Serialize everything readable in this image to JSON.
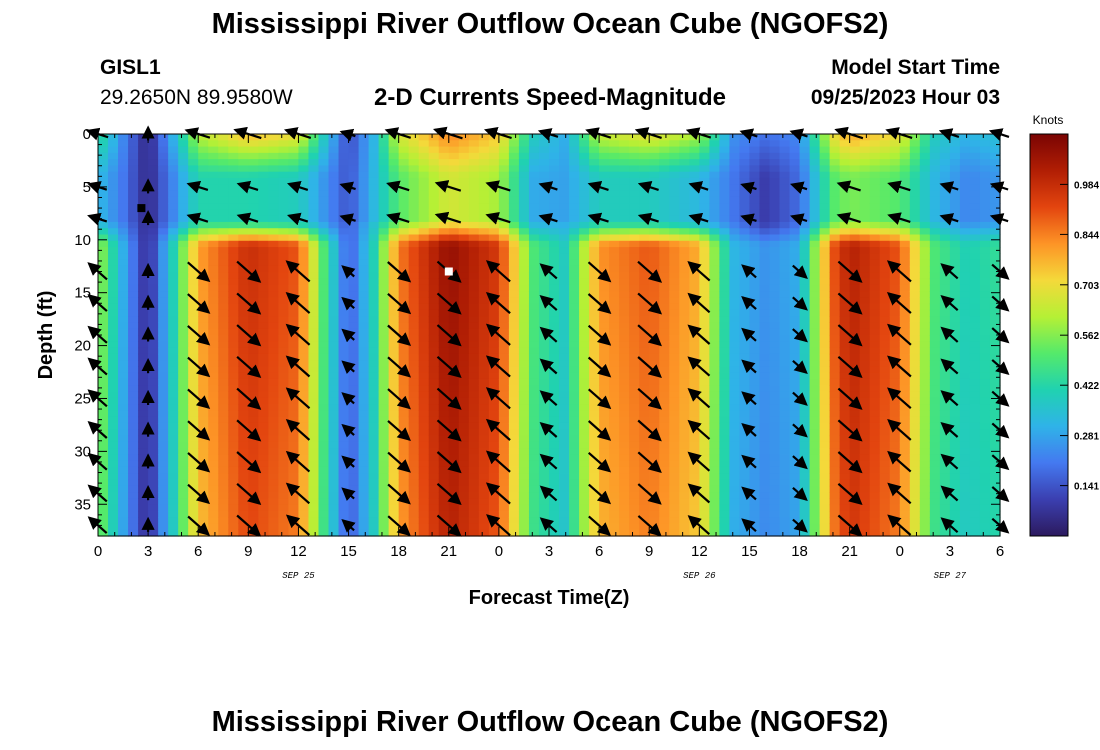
{
  "header": {
    "title": "Mississippi River Outflow Ocean Cube (NGOFS2)",
    "station_id": "GISL1",
    "station_coords": "29.2650N  89.9580W",
    "subtitle": "2-D Currents Speed-Magnitude",
    "model_start_label": "Model Start Time",
    "model_start_value": "09/25/2023 Hour 03"
  },
  "footer": {
    "repeated_title": "Mississippi River Outflow Ocean Cube (NGOFS2)"
  },
  "chart_data": {
    "type": "heatmap",
    "title": "2-D Currents Speed-Magnitude",
    "xlabel": "Forecast Time(Z)",
    "ylabel": "Depth (ft)",
    "x_unit": "forecast hours from 09/25 00Z",
    "x_range": [
      0,
      54
    ],
    "x_ticks": [
      0,
      3,
      6,
      9,
      12,
      15,
      18,
      21,
      24,
      27,
      30,
      33,
      36,
      39,
      42,
      45,
      48,
      51,
      54
    ],
    "x_tick_labels": [
      "0",
      "3",
      "6",
      "9",
      "12",
      "15",
      "18",
      "21",
      "0",
      "3",
      "6",
      "9",
      "12",
      "15",
      "18",
      "21",
      "0",
      "3",
      "6"
    ],
    "date_labels": [
      {
        "hour": 12,
        "text": "SEP 25"
      },
      {
        "hour": 36,
        "text": "SEP 26"
      },
      {
        "hour": 51,
        "text": "SEP 27"
      }
    ],
    "y_range": [
      0,
      38
    ],
    "y_ticks": [
      0,
      5,
      10,
      15,
      20,
      25,
      30,
      35
    ],
    "y_tick_labels": [
      "0",
      "5",
      "10",
      "15",
      "20",
      "25",
      "30",
      "35"
    ],
    "colorbar": {
      "label": "Knots",
      "min": 0.0,
      "max": 1.125,
      "tick_values": [
        0.141,
        0.281,
        0.422,
        0.562,
        0.703,
        0.844,
        0.984
      ],
      "tick_labels": [
        "0.141",
        "0.281",
        "0.422",
        "0.562",
        "0.703",
        "0.844",
        "0.984"
      ],
      "colors": [
        "#2c1a5e",
        "#3b3fb0",
        "#4479f0",
        "#2fb3e8",
        "#20d2b0",
        "#55ea6a",
        "#b5f035",
        "#f4d93a",
        "#fd9426",
        "#e3450f",
        "#b11e04",
        "#7a0403"
      ]
    },
    "speed_profile_knots": [
      {
        "hour": 0,
        "deep": 0.6,
        "shallow": 0.35
      },
      {
        "hour": 1.5,
        "deep": 0.3,
        "shallow": 0.22
      },
      {
        "hour": 3,
        "deep": 0.05,
        "shallow": 0.05
      },
      {
        "hour": 4.5,
        "deep": 0.4,
        "shallow": 0.25
      },
      {
        "hour": 6,
        "deep": 0.8,
        "shallow": 0.45
      },
      {
        "hour": 9,
        "deep": 0.98,
        "shallow": 0.45
      },
      {
        "hour": 12,
        "deep": 0.9,
        "shallow": 0.42
      },
      {
        "hour": 13.5,
        "deep": 0.5,
        "shallow": 0.28
      },
      {
        "hour": 15,
        "deep": 0.15,
        "shallow": 0.15
      },
      {
        "hour": 16.5,
        "deep": 0.4,
        "shallow": 0.35
      },
      {
        "hour": 18,
        "deep": 0.85,
        "shallow": 0.55
      },
      {
        "hour": 21,
        "deep": 1.08,
        "shallow": 0.72
      },
      {
        "hour": 24,
        "deep": 0.95,
        "shallow": 0.65
      },
      {
        "hour": 26,
        "deep": 0.5,
        "shallow": 0.32
      },
      {
        "hour": 28,
        "deep": 0.38,
        "shallow": 0.3
      },
      {
        "hour": 30,
        "deep": 0.82,
        "shallow": 0.42
      },
      {
        "hour": 33,
        "deep": 0.9,
        "shallow": 0.42
      },
      {
        "hour": 36,
        "deep": 0.78,
        "shallow": 0.35
      },
      {
        "hour": 38,
        "deep": 0.32,
        "shallow": 0.22
      },
      {
        "hour": 40,
        "deep": 0.25,
        "shallow": 0.1
      },
      {
        "hour": 42,
        "deep": 0.3,
        "shallow": 0.2
      },
      {
        "hour": 44,
        "deep": 0.9,
        "shallow": 0.55
      },
      {
        "hour": 45,
        "deep": 1.02,
        "shallow": 0.6
      },
      {
        "hour": 48,
        "deep": 0.9,
        "shallow": 0.55
      },
      {
        "hour": 50,
        "deep": 0.5,
        "shallow": 0.35
      },
      {
        "hour": 52,
        "deep": 0.4,
        "shallow": 0.25
      },
      {
        "hour": 54,
        "deep": 0.45,
        "shallow": 0.28
      }
    ],
    "vector_hours": [
      0,
      3,
      6,
      9,
      12,
      15,
      18,
      21,
      24,
      27,
      30,
      33,
      36,
      39,
      42,
      45,
      48,
      51,
      54
    ],
    "vector_depths_ft": [
      0,
      5,
      8,
      13,
      16,
      19,
      22,
      25,
      28,
      31,
      34,
      37
    ],
    "markers": [
      {
        "hour": 2.6,
        "depth": 7,
        "color": "#000000"
      },
      {
        "hour": 21.0,
        "depth": 13,
        "color": "#ffffff"
      }
    ]
  }
}
